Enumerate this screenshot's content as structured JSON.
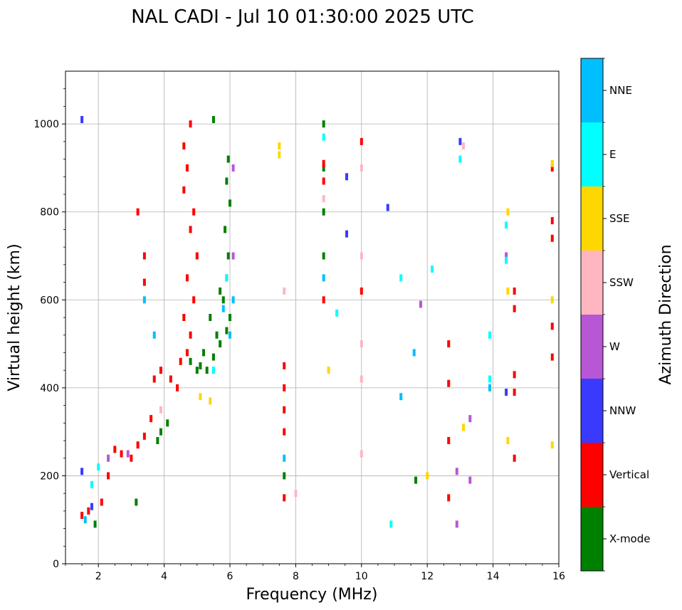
{
  "chart_data": {
    "type": "scatter",
    "title": "NAL CADI - Jul 10 01:30:00 2025 UTC",
    "xlabel": "Frequency (MHz)",
    "ylabel": "Virtual height (km)",
    "xlim": [
      1,
      16
    ],
    "ylim": [
      0,
      1120
    ],
    "xticks": [
      2,
      4,
      6,
      8,
      10,
      12,
      14,
      16
    ],
    "yticks": [
      0,
      200,
      400,
      600,
      800,
      1000
    ],
    "grid": true,
    "colorbar_label": "Azimuth Direction",
    "categories": [
      {
        "name": "X-mode",
        "color": "#008000"
      },
      {
        "name": "Vertical",
        "color": "#ff0000"
      },
      {
        "name": "NNW",
        "color": "#3a3aff"
      },
      {
        "name": "W",
        "color": "#b857d6"
      },
      {
        "name": "SSW",
        "color": "#ffb6c1"
      },
      {
        "name": "SSE",
        "color": "#ffd700"
      },
      {
        "name": "E",
        "color": "#00ffff"
      },
      {
        "name": "NNE",
        "color": "#00bfff"
      }
    ],
    "series": [
      {
        "name": "X-mode",
        "points": [
          [
            5.1,
            450
          ],
          [
            5.3,
            440
          ],
          [
            5.5,
            470
          ],
          [
            5.7,
            500
          ],
          [
            5.9,
            530
          ],
          [
            6.0,
            560
          ],
          [
            5.8,
            600
          ],
          [
            5.9,
            650
          ],
          [
            5.95,
            700
          ],
          [
            5.85,
            760
          ],
          [
            6.0,
            820
          ],
          [
            5.9,
            870
          ],
          [
            5.95,
            920
          ],
          [
            5.5,
            1010
          ],
          [
            5.0,
            440
          ],
          [
            4.8,
            460
          ],
          [
            5.2,
            480
          ],
          [
            5.6,
            520
          ],
          [
            5.4,
            560
          ],
          [
            5.7,
            620
          ],
          [
            3.8,
            280
          ],
          [
            3.9,
            300
          ],
          [
            4.1,
            320
          ],
          [
            1.9,
            90
          ],
          [
            8.85,
            1000
          ],
          [
            8.85,
            900
          ],
          [
            8.85,
            800
          ],
          [
            8.85,
            700
          ],
          [
            7.65,
            200
          ],
          [
            3.15,
            140
          ],
          [
            11.65,
            190
          ]
        ]
      },
      {
        "name": "Vertical",
        "points": [
          [
            1.5,
            110
          ],
          [
            1.7,
            120
          ],
          [
            2.1,
            140
          ],
          [
            2.3,
            200
          ],
          [
            2.5,
            260
          ],
          [
            2.7,
            250
          ],
          [
            3.0,
            240
          ],
          [
            3.2,
            270
          ],
          [
            3.4,
            290
          ],
          [
            3.6,
            330
          ],
          [
            3.7,
            420
          ],
          [
            3.9,
            440
          ],
          [
            4.2,
            420
          ],
          [
            4.4,
            400
          ],
          [
            4.5,
            460
          ],
          [
            4.7,
            480
          ],
          [
            4.8,
            520
          ],
          [
            4.6,
            560
          ],
          [
            4.9,
            600
          ],
          [
            4.7,
            650
          ],
          [
            5.0,
            700
          ],
          [
            4.8,
            760
          ],
          [
            4.9,
            800
          ],
          [
            4.6,
            850
          ],
          [
            4.7,
            900
          ],
          [
            4.6,
            950
          ],
          [
            4.8,
            1000
          ],
          [
            3.4,
            700
          ],
          [
            3.4,
            640
          ],
          [
            3.2,
            800
          ],
          [
            7.65,
            300
          ],
          [
            7.65,
            350
          ],
          [
            7.65,
            400
          ],
          [
            7.65,
            450
          ],
          [
            7.65,
            150
          ],
          [
            8.85,
            600
          ],
          [
            8.85,
            870
          ],
          [
            8.85,
            910
          ],
          [
            10.0,
            960
          ],
          [
            10.0,
            620
          ],
          [
            12.65,
            500
          ],
          [
            12.65,
            410
          ],
          [
            12.65,
            280
          ],
          [
            12.65,
            150
          ],
          [
            14.65,
            620
          ],
          [
            14.65,
            580
          ],
          [
            14.65,
            430
          ],
          [
            14.65,
            390
          ],
          [
            14.65,
            240
          ],
          [
            15.8,
            900
          ],
          [
            15.8,
            780
          ],
          [
            15.8,
            740
          ],
          [
            15.8,
            470
          ],
          [
            15.8,
            540
          ]
        ]
      },
      {
        "name": "NNW",
        "points": [
          [
            1.5,
            1010
          ],
          [
            1.5,
            210
          ],
          [
            1.8,
            130
          ],
          [
            9.55,
            880
          ],
          [
            9.55,
            750
          ],
          [
            10.8,
            810
          ],
          [
            13.0,
            960
          ],
          [
            14.4,
            390
          ]
        ]
      },
      {
        "name": "W",
        "points": [
          [
            2.3,
            240
          ],
          [
            2.9,
            250
          ],
          [
            6.1,
            900
          ],
          [
            6.1,
            700
          ],
          [
            13.3,
            330
          ],
          [
            12.9,
            210
          ],
          [
            12.9,
            90
          ],
          [
            13.3,
            190
          ],
          [
            14.4,
            700
          ],
          [
            11.8,
            590
          ]
        ]
      },
      {
        "name": "SSW",
        "points": [
          [
            3.9,
            350
          ],
          [
            7.65,
            620
          ],
          [
            8.85,
            830
          ],
          [
            10.0,
            900
          ],
          [
            10.0,
            700
          ],
          [
            10.0,
            500
          ],
          [
            10.0,
            420
          ],
          [
            10.0,
            250
          ],
          [
            13.1,
            950
          ],
          [
            8.0,
            160
          ]
        ]
      },
      {
        "name": "SSE",
        "points": [
          [
            5.1,
            380
          ],
          [
            5.4,
            370
          ],
          [
            7.5,
            950
          ],
          [
            7.5,
            930
          ],
          [
            9.0,
            440
          ],
          [
            12.0,
            200
          ],
          [
            13.1,
            310
          ],
          [
            14.45,
            800
          ],
          [
            14.45,
            620
          ],
          [
            14.45,
            280
          ],
          [
            15.8,
            910
          ],
          [
            15.8,
            600
          ],
          [
            15.8,
            270
          ]
        ]
      },
      {
        "name": "E",
        "points": [
          [
            1.8,
            180
          ],
          [
            2.0,
            220
          ],
          [
            5.5,
            440
          ],
          [
            5.9,
            650
          ],
          [
            8.85,
            970
          ],
          [
            9.25,
            570
          ],
          [
            10.9,
            90
          ],
          [
            11.2,
            650
          ],
          [
            12.15,
            670
          ],
          [
            13.0,
            920
          ],
          [
            13.9,
            520
          ],
          [
            13.9,
            420
          ],
          [
            14.4,
            690
          ],
          [
            14.4,
            770
          ]
        ]
      },
      {
        "name": "NNE",
        "points": [
          [
            1.6,
            100
          ],
          [
            3.4,
            600
          ],
          [
            3.7,
            520
          ],
          [
            5.8,
            580
          ],
          [
            6.0,
            520
          ],
          [
            6.1,
            600
          ],
          [
            8.85,
            650
          ],
          [
            11.2,
            380
          ],
          [
            11.6,
            480
          ],
          [
            13.9,
            400
          ],
          [
            7.65,
            240
          ]
        ]
      }
    ]
  }
}
